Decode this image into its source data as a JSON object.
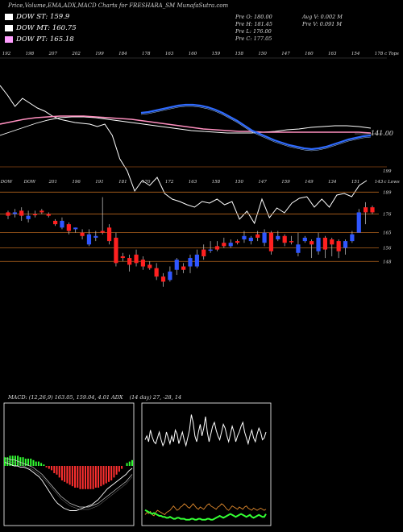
{
  "header": {
    "title": "Price,Volume,EMA,ADX,MACD Charts for FRESHARA_SM MunafaSutra.com"
  },
  "legend": [
    {
      "label": "DOW ST: 159.9",
      "color": "#ffffff"
    },
    {
      "label": "DOW MT: 160.75",
      "color": "#ffffff"
    },
    {
      "label": "DOW PT: 165.18",
      "color": "#ff9fff"
    }
  ],
  "ohlc": {
    "prev_open": "Pre  O: 180.00",
    "prev_high": "Pre  H: 181.45",
    "prev_low": "Pre  L: 176.00",
    "prev_close": "Pre  C: 177.05",
    "avg_volume": "Avg V: 0.002  M",
    "prev_volume": "Pre  V: 0.091 M"
  },
  "chart_data": [
    {
      "type": "line",
      "name": "price-ema-panel",
      "top_ticks": [
        "192",
        "198",
        "207",
        "202",
        "199",
        "184",
        "178",
        "163",
        "160",
        "159",
        "158",
        "150",
        "147",
        "160",
        "163",
        "154",
        "178"
      ],
      "top_axis_label": "c Tops",
      "bottom_ticks": [
        "DOW",
        "DOW",
        "201",
        "196",
        "191",
        "181",
        "170",
        "172",
        "163",
        "158",
        "150",
        "147",
        "159",
        "149",
        "134",
        "151",
        "143"
      ],
      "right_label_price": "141.00",
      "right_label_low": "199",
      "close_line": [
        34,
        46,
        60,
        50,
        56,
        62,
        66,
        72,
        76,
        78,
        80,
        81,
        82,
        85,
        82,
        96,
        125,
        140,
        165,
        152,
        158,
        148,
        168,
        175,
        178,
        182,
        185,
        178,
        180,
        175,
        182,
        178,
        200,
        190,
        205,
        175,
        198,
        186,
        192,
        180,
        174,
        172,
        185,
        175,
        185,
        170,
        168,
        172,
        158,
        152
      ],
      "ema_short": [
        140,
        139,
        137,
        135,
        133,
        131,
        130,
        130,
        131,
        133,
        136,
        140,
        145,
        150,
        156,
        162,
        166,
        170,
        174,
        177,
        180,
        182,
        184,
        185,
        184,
        182,
        179,
        176,
        173,
        171,
        169,
        168
      ],
      "ema_long": [
        168,
        163,
        158,
        153,
        149,
        146,
        145,
        145,
        146,
        148,
        150,
        152,
        154,
        156,
        158,
        160,
        162,
        163,
        164,
        165,
        165,
        165,
        164,
        163,
        161,
        160,
        158,
        157,
        156,
        156,
        157,
        159
      ],
      "ema_pink": [
        154,
        151,
        148,
        146,
        145,
        144,
        144,
        144,
        145,
        146,
        147,
        148,
        150,
        152,
        154,
        156,
        158,
        160,
        161,
        162,
        163,
        163,
        164,
        164,
        164,
        164,
        164,
        164,
        164,
        164,
        164,
        165
      ]
    },
    {
      "type": "bar",
      "name": "candlestick-panel",
      "right_axis_label": "c Lows",
      "hlines": [
        189,
        176,
        165,
        156,
        148
      ],
      "candles": [
        {
          "o": 177,
          "c": 175,
          "h": 178,
          "l": 173,
          "up": false
        },
        {
          "o": 176,
          "c": 177,
          "h": 179,
          "l": 174,
          "up": true
        },
        {
          "o": 178,
          "c": 175,
          "h": 180,
          "l": 172,
          "up": false
        },
        {
          "o": 173,
          "c": 175,
          "h": 178,
          "l": 171,
          "up": true
        },
        {
          "o": 176,
          "c": 176,
          "h": 178,
          "l": 174,
          "up": false
        },
        {
          "o": 178,
          "c": 177,
          "h": 179,
          "l": 176,
          "up": false
        },
        {
          "o": 176,
          "c": 175,
          "h": 177,
          "l": 174,
          "up": false
        },
        {
          "o": 172,
          "c": 170,
          "h": 173,
          "l": 169,
          "up": false
        },
        {
          "o": 168,
          "c": 172,
          "h": 174,
          "l": 167,
          "up": true
        },
        {
          "o": 170,
          "c": 166,
          "h": 171,
          "l": 164,
          "up": false
        },
        {
          "o": 167,
          "c": 168,
          "h": 168,
          "l": 165,
          "up": true
        },
        {
          "o": 165,
          "c": 163,
          "h": 167,
          "l": 161,
          "up": false
        },
        {
          "o": 158,
          "c": 164,
          "h": 167,
          "l": 157,
          "up": true
        },
        {
          "o": 162,
          "c": 163,
          "h": 166,
          "l": 160,
          "up": true
        },
        {
          "o": 166,
          "c": 165,
          "h": 186,
          "l": 164,
          "up": false
        },
        {
          "o": 168,
          "c": 160,
          "h": 170,
          "l": 158,
          "up": false
        },
        {
          "o": 162,
          "c": 147,
          "h": 165,
          "l": 145,
          "up": false
        },
        {
          "o": 151,
          "c": 150,
          "h": 153,
          "l": 148,
          "up": false
        },
        {
          "o": 150,
          "c": 146,
          "h": 152,
          "l": 142,
          "up": false
        },
        {
          "o": 152,
          "c": 147,
          "h": 155,
          "l": 145,
          "up": false
        },
        {
          "o": 149,
          "c": 145,
          "h": 151,
          "l": 143,
          "up": false
        },
        {
          "o": 146,
          "c": 144,
          "h": 148,
          "l": 143,
          "up": false
        },
        {
          "o": 144,
          "c": 139,
          "h": 147,
          "l": 137,
          "up": false
        },
        {
          "o": 139,
          "c": 136,
          "h": 141,
          "l": 133,
          "up": false
        },
        {
          "o": 137,
          "c": 142,
          "h": 145,
          "l": 136,
          "up": true
        },
        {
          "o": 143,
          "c": 149,
          "h": 150,
          "l": 140,
          "up": true
        },
        {
          "o": 145,
          "c": 143,
          "h": 147,
          "l": 141,
          "up": false
        },
        {
          "o": 145,
          "c": 150,
          "h": 152,
          "l": 141,
          "up": true
        },
        {
          "o": 145,
          "c": 152,
          "h": 155,
          "l": 144,
          "up": true
        },
        {
          "o": 155,
          "c": 151,
          "h": 158,
          "l": 149,
          "up": false
        },
        {
          "o": 155,
          "c": 155,
          "h": 160,
          "l": 153,
          "up": true
        },
        {
          "o": 157,
          "c": 155,
          "h": 160,
          "l": 154,
          "up": false
        },
        {
          "o": 159,
          "c": 157,
          "h": 162,
          "l": 156,
          "up": false
        },
        {
          "o": 157,
          "c": 159,
          "h": 161,
          "l": 156,
          "up": true
        },
        {
          "o": 160,
          "c": 159,
          "h": 161,
          "l": 158,
          "up": false
        },
        {
          "o": 161,
          "c": 163,
          "h": 166,
          "l": 159,
          "up": true
        },
        {
          "o": 160,
          "c": 162,
          "h": 163,
          "l": 158,
          "up": true
        },
        {
          "o": 164,
          "c": 162,
          "h": 166,
          "l": 160,
          "up": false
        },
        {
          "o": 159,
          "c": 165,
          "h": 167,
          "l": 157,
          "up": true
        },
        {
          "o": 165,
          "c": 154,
          "h": 166,
          "l": 152,
          "up": false
        },
        {
          "o": 161,
          "c": 163,
          "h": 166,
          "l": 160,
          "up": true
        },
        {
          "o": 163,
          "c": 159,
          "h": 164,
          "l": 157,
          "up": false
        },
        {
          "o": 160,
          "c": 160,
          "h": 163,
          "l": 158,
          "up": false
        },
        {
          "o": 153,
          "c": 158,
          "h": 165,
          "l": 151,
          "up": true
        },
        {
          "o": 160,
          "c": 162,
          "h": 163,
          "l": 159,
          "up": true
        },
        {
          "o": 160,
          "c": 158,
          "h": 161,
          "l": 150,
          "up": false
        },
        {
          "o": 154,
          "c": 162,
          "h": 165,
          "l": 152,
          "up": true
        },
        {
          "o": 162,
          "c": 155,
          "h": 163,
          "l": 150,
          "up": false
        },
        {
          "o": 161,
          "c": 158,
          "h": 162,
          "l": 151,
          "up": false
        },
        {
          "o": 160,
          "c": 154,
          "h": 161,
          "l": 150,
          "up": false
        },
        {
          "o": 156,
          "c": 160,
          "h": 161,
          "l": 152,
          "up": true
        },
        {
          "o": 160,
          "c": 164,
          "h": 166,
          "l": 159,
          "up": true
        },
        {
          "o": 165,
          "c": 177,
          "h": 179,
          "l": 165,
          "up": true
        },
        {
          "o": 177,
          "c": 180,
          "h": 183,
          "l": 170,
          "up": false
        },
        {
          "o": 180,
          "c": 177,
          "h": 181,
          "l": 176,
          "up": false
        }
      ]
    },
    {
      "type": "bar",
      "name": "macd-panel",
      "header": "MACD: (12,26,9) 163.05, 159.04, 4.01 ADX",
      "histogram": [
        6,
        6,
        7,
        7,
        7,
        7,
        6,
        6,
        5,
        5,
        5,
        4,
        3,
        3,
        2,
        1,
        -1,
        -2,
        -3,
        -5,
        -6,
        -8,
        -10,
        -11,
        -12,
        -13,
        -14,
        -15,
        -15,
        -16,
        -16,
        -16,
        -16,
        -16,
        -16,
        -15,
        -15,
        -14,
        -13,
        -12,
        -11,
        -10,
        -8,
        -6,
        -4,
        -2,
        0,
        2,
        3,
        4
      ],
      "macd_line": [
        3,
        2,
        1,
        0,
        0,
        -1,
        -1,
        -2,
        -3,
        -5,
        -7,
        -9,
        -12,
        -16,
        -20,
        -24,
        -28,
        -31,
        -33,
        -35,
        -36,
        -37,
        -37,
        -37,
        -36,
        -35,
        -34,
        -33,
        -32,
        -30,
        -28,
        -25,
        -22,
        -19,
        -17,
        -15,
        -13,
        -11,
        -9,
        -7,
        -4,
        -2
      ],
      "signal_line": [
        6,
        6,
        5,
        5,
        4,
        3,
        2,
        1,
        0,
        -1,
        -3,
        -5,
        -7,
        -10,
        -13,
        -16,
        -19,
        -22,
        -25,
        -27,
        -29,
        -31,
        -32,
        -33,
        -34,
        -34,
        -34,
        -34,
        -33,
        -32,
        -31,
        -29,
        -27,
        -25,
        -23,
        -21,
        -19,
        -17,
        -15,
        -13,
        -10,
        -7
      ]
    },
    {
      "type": "line",
      "name": "adx-panel",
      "header": "(14 day) 27, -28, 14",
      "di_white": [
        62,
        66,
        60,
        72,
        65,
        60,
        58,
        64,
        70,
        62,
        56,
        60,
        70,
        64,
        58,
        66,
        60,
        72,
        68,
        58,
        64,
        70,
        62,
        56,
        64,
        72,
        88,
        80,
        66,
        60,
        70,
        78,
        66,
        74,
        86,
        70,
        60,
        68,
        76,
        80,
        72,
        66,
        62,
        70,
        78,
        74,
        66,
        60,
        68,
        76,
        70,
        60,
        66,
        70,
        76,
        80,
        70,
        64,
        58,
        66,
        72,
        64,
        60,
        68,
        74,
        70,
        62,
        64,
        70
      ],
      "di_orange": [
        10,
        12,
        11,
        13,
        10,
        9,
        12,
        14,
        13,
        12,
        11,
        10,
        12,
        13,
        14,
        16,
        18,
        16,
        14,
        15,
        17,
        18,
        20,
        19,
        17,
        16,
        18,
        20,
        18,
        16,
        15,
        17,
        16,
        15,
        17,
        19,
        20,
        18,
        17,
        16,
        15,
        17,
        18,
        20,
        19,
        17,
        15,
        14,
        16,
        18,
        17,
        16,
        15,
        17,
        16,
        15,
        17,
        18,
        16,
        15,
        14,
        16,
        15,
        14,
        15,
        16,
        15,
        14,
        15
      ],
      "adx_green": [
        16,
        15,
        14,
        13,
        12,
        13,
        12,
        11,
        10,
        10,
        9,
        9,
        8,
        8,
        9,
        8,
        7,
        7,
        8,
        8,
        7,
        7,
        7,
        6,
        6,
        6,
        7,
        7,
        6,
        6,
        7,
        7,
        6,
        6,
        6,
        7,
        7,
        6,
        6,
        7,
        8,
        9,
        10,
        9,
        8,
        9,
        10,
        11,
        12,
        11,
        10,
        9,
        10,
        11,
        12,
        11,
        10,
        9,
        10,
        11,
        9,
        8,
        9,
        10,
        11,
        10,
        9,
        9,
        12
      ]
    }
  ]
}
